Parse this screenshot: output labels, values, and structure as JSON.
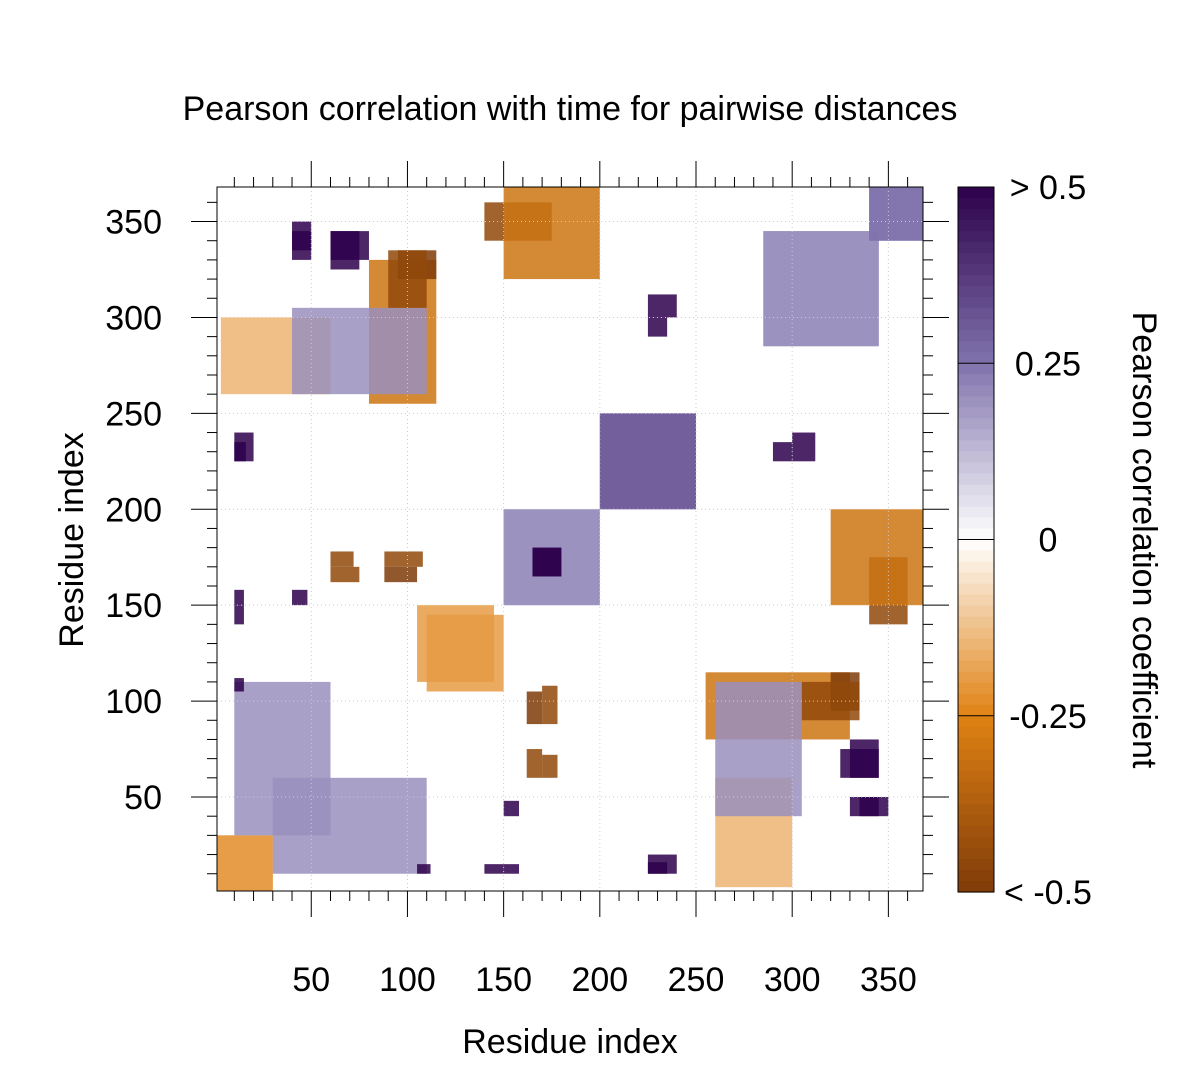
{
  "chart_data": {
    "type": "heatmap",
    "title": "Pearson correlation with time for pairwise distances",
    "xlabel": "Residue index",
    "ylabel": "Residue index",
    "xlim": [
      1,
      368
    ],
    "ylim": [
      1,
      368
    ],
    "x_ticks": [
      "50",
      "100",
      "150",
      "200",
      "250",
      "300",
      "350"
    ],
    "y_ticks": [
      "50",
      "100",
      "150",
      "200",
      "250",
      "300",
      "350"
    ],
    "symmetric": true,
    "grid": true,
    "colorbar": {
      "label": "Pearson correlation coefficient",
      "tick_labels": [
        "> 0.5",
        "0.25",
        "0",
        "-0.25",
        "< -0.5"
      ],
      "range": [
        -0.5,
        0.5
      ],
      "high_color": "#2d004b",
      "mid_color": "#ffffff",
      "low_color": "#7f3b08"
    },
    "regions": [
      {
        "x": [
          1,
          30
        ],
        "y": [
          1,
          30
        ],
        "value": -0.2
      },
      {
        "x": [
          3,
          60
        ],
        "y": [
          260,
          300
        ],
        "value": -0.15
      },
      {
        "x": [
          80,
          115
        ],
        "y": [
          255,
          330
        ],
        "value": -0.3
      },
      {
        "x": [
          95,
          115
        ],
        "y": [
          320,
          335
        ],
        "value": -0.5
      },
      {
        "x": [
          60,
          80
        ],
        "y": [
          330,
          345
        ],
        "value": 0.6
      },
      {
        "x": [
          40,
          50
        ],
        "y": [
          335,
          350
        ],
        "value": 0.6
      },
      {
        "x": [
          140,
          175
        ],
        "y": [
          340,
          360
        ],
        "value": -0.45
      },
      {
        "x": [
          10,
          16
        ],
        "y": [
          225,
          235
        ],
        "value": 0.6
      },
      {
        "x": [
          10,
          15
        ],
        "y": [
          150,
          158
        ],
        "value": 0.6
      },
      {
        "x": [
          40,
          48
        ],
        "y": [
          150,
          158
        ],
        "value": 0.6
      },
      {
        "x": [
          60,
          72
        ],
        "y": [
          170,
          178
        ],
        "value": -0.45
      },
      {
        "x": [
          88,
          108
        ],
        "y": [
          170,
          178
        ],
        "value": -0.45
      },
      {
        "x": [
          105,
          145
        ],
        "y": [
          110,
          150
        ],
        "value": -0.2
      },
      {
        "x": [
          150,
          200
        ],
        "y": [
          150,
          200
        ],
        "value": 0.2
      },
      {
        "x": [
          165,
          180
        ],
        "y": [
          165,
          180
        ],
        "value": 0.6
      },
      {
        "x": [
          200,
          250
        ],
        "y": [
          200,
          250
        ],
        "value": 0.3
      },
      {
        "x": [
          162,
          170
        ],
        "y": [
          88,
          105
        ],
        "value": -0.5
      },
      {
        "x": [
          162,
          170
        ],
        "y": [
          60,
          75
        ],
        "value": -0.45
      },
      {
        "x": [
          225,
          240
        ],
        "y": [
          300,
          312
        ],
        "value": 0.6
      },
      {
        "x": [
          10,
          60
        ],
        "y": [
          30,
          110
        ],
        "value": 0.2
      },
      {
        "x": [
          260,
          305
        ],
        "y": [
          40,
          110
        ],
        "value": 0.2
      },
      {
        "x": [
          305,
          335
        ],
        "y": [
          90,
          110
        ],
        "value": -0.45
      },
      {
        "x": [
          325,
          345
        ],
        "y": [
          60,
          75
        ],
        "value": 0.6
      },
      {
        "x": [
          330,
          345
        ],
        "y": [
          40,
          50
        ],
        "value": 0.6
      },
      {
        "x": [
          285,
          345
        ],
        "y": [
          285,
          345
        ],
        "value": 0.2
      },
      {
        "x": [
          340,
          368
        ],
        "y": [
          340,
          368
        ],
        "value": 0.25
      },
      {
        "x": [
          320,
          368
        ],
        "y": [
          150,
          200
        ],
        "value": -0.3
      },
      {
        "x": [
          290,
          300
        ],
        "y": [
          225,
          235
        ],
        "value": 0.6
      },
      {
        "x": [
          225,
          240
        ],
        "y": [
          10,
          20
        ],
        "value": 0.6
      },
      {
        "x": [
          140,
          150
        ],
        "y": [
          10,
          15
        ],
        "value": 0.6
      },
      {
        "x": [
          105,
          112
        ],
        "y": [
          10,
          15
        ],
        "value": 0.6
      }
    ]
  }
}
